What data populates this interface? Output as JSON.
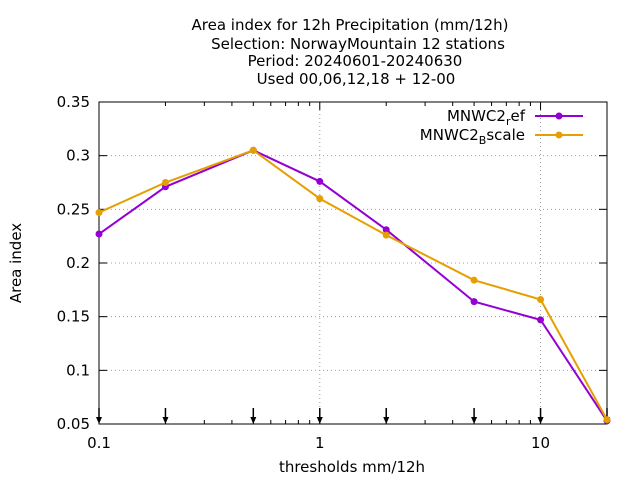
{
  "chart_data": {
    "type": "line",
    "title_lines": [
      "Area index  for 12h Precipitation (mm/12h)",
      "Selection: NorwayMountain     12 stations",
      "Period: 20240601-20240630",
      "Used 00,06,12,18 + 12-00"
    ],
    "xlabel": "thresholds mm/12h",
    "ylabel": "Area index",
    "xscale": "log",
    "xlim": [
      0.1,
      20
    ],
    "ylim": [
      0.05,
      0.35
    ],
    "x_ticks": [
      0.1,
      1,
      10
    ],
    "x_tick_labels": [
      "0.1",
      "1",
      "10"
    ],
    "y_ticks": [
      0.05,
      0.1,
      0.15,
      0.2,
      0.25,
      0.3,
      0.35
    ],
    "y_tick_labels": [
      "0.05",
      "0.1",
      "0.15",
      "0.2",
      "0.25",
      "0.3",
      "0.35"
    ],
    "threshold_markers": [
      0.1,
      0.2,
      0.5,
      1,
      2,
      5,
      10,
      20
    ],
    "grid": true,
    "legend_position": "top-right",
    "x": [
      0.1,
      0.2,
      0.5,
      1,
      2,
      5,
      10,
      20
    ],
    "series": [
      {
        "name_main": "MNWC2",
        "name_sub": "r",
        "name_rest": "ef",
        "color": "#9400d3",
        "values": [
          0.227,
          0.271,
          0.305,
          0.276,
          0.231,
          0.164,
          0.147,
          0.053
        ]
      },
      {
        "name_main": "MNWC2",
        "name_sub": "B",
        "name_rest": "scale",
        "color": "#e69f00",
        "values": [
          0.247,
          0.275,
          0.305,
          0.26,
          0.226,
          0.184,
          0.166,
          0.054
        ]
      }
    ]
  }
}
